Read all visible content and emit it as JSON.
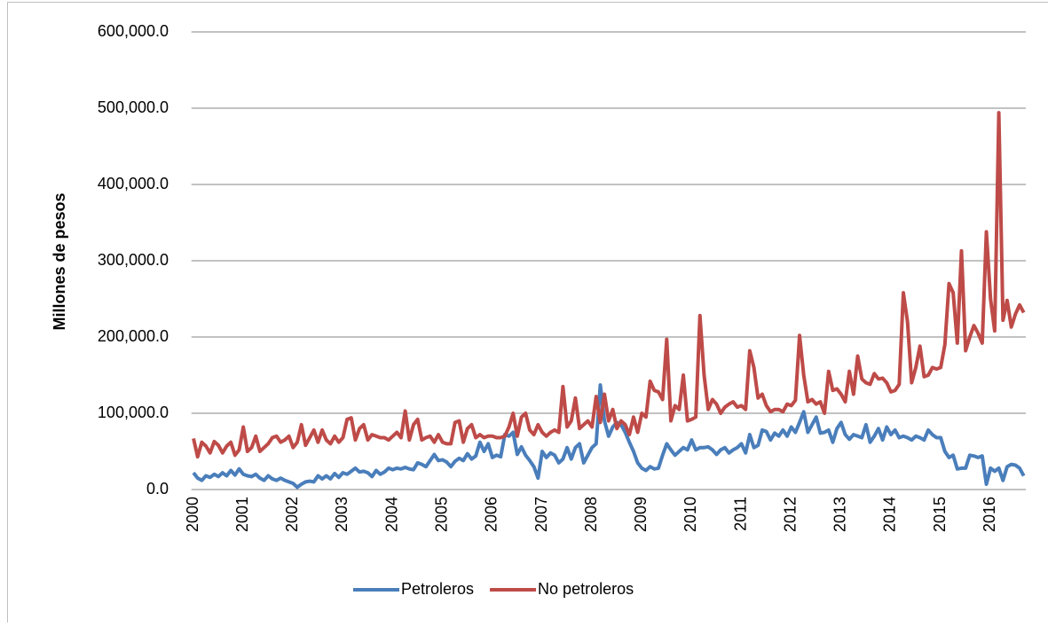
{
  "chart_data": {
    "type": "line",
    "ylabel": "Millones de pesos",
    "categories": [
      "2000",
      null,
      null,
      null,
      null,
      null,
      null,
      null,
      null,
      null,
      null,
      null,
      "2001",
      null,
      null,
      null,
      null,
      null,
      null,
      null,
      null,
      null,
      null,
      null,
      "2002",
      null,
      null,
      null,
      null,
      null,
      null,
      null,
      null,
      null,
      null,
      null,
      "2003",
      null,
      null,
      null,
      null,
      null,
      null,
      null,
      null,
      null,
      null,
      null,
      "2004",
      null,
      null,
      null,
      null,
      null,
      null,
      null,
      null,
      null,
      null,
      null,
      "2005",
      null,
      null,
      null,
      null,
      null,
      null,
      null,
      null,
      null,
      null,
      null,
      "2006",
      null,
      null,
      null,
      null,
      null,
      null,
      null,
      null,
      null,
      null,
      null,
      "2007",
      null,
      null,
      null,
      null,
      null,
      null,
      null,
      null,
      null,
      null,
      null,
      "2008",
      null,
      null,
      null,
      null,
      null,
      null,
      null,
      null,
      null,
      null,
      null,
      "2009",
      null,
      null,
      null,
      null,
      null,
      null,
      null,
      null,
      null,
      null,
      null,
      "2010",
      null,
      null,
      null,
      null,
      null,
      null,
      null,
      null,
      null,
      null,
      null,
      "2011",
      null,
      null,
      null,
      null,
      null,
      null,
      null,
      null,
      null,
      null,
      null,
      "2012",
      null,
      null,
      null,
      null,
      null,
      null,
      null,
      null,
      null,
      null,
      null,
      "2013",
      null,
      null,
      null,
      null,
      null,
      null,
      null,
      null,
      null,
      null,
      null,
      "2014",
      null,
      null,
      null,
      null,
      null,
      null,
      null,
      null,
      null,
      null,
      null,
      "2015",
      null,
      null,
      null,
      null,
      null,
      null,
      null,
      null,
      null,
      null,
      null,
      "2016",
      null,
      null,
      null,
      null,
      null,
      null,
      null,
      null
    ],
    "series": [
      {
        "name": "Petroleros",
        "color": "#4a7ebb",
        "values": [
          22000,
          15000,
          12000,
          18000,
          16000,
          20000,
          17000,
          22000,
          18000,
          25000,
          19000,
          27000,
          20000,
          18000,
          17000,
          20000,
          15000,
          12000,
          18000,
          14000,
          12000,
          15000,
          12000,
          10000,
          8000,
          3000,
          7000,
          10000,
          11000,
          10000,
          18000,
          14000,
          18000,
          14000,
          21000,
          16000,
          22000,
          20000,
          24000,
          28000,
          23000,
          24000,
          22000,
          17000,
          25000,
          20000,
          23000,
          28000,
          26000,
          28000,
          27000,
          29000,
          27000,
          26000,
          35000,
          33000,
          30000,
          38000,
          46000,
          38000,
          39000,
          36000,
          30000,
          37000,
          41000,
          38000,
          47000,
          40000,
          44000,
          62000,
          50000,
          60000,
          42000,
          45000,
          43000,
          72000,
          70000,
          75000,
          46000,
          56000,
          45000,
          38000,
          30000,
          15000,
          50000,
          42000,
          48000,
          45000,
          35000,
          40000,
          55000,
          40000,
          55000,
          60000,
          35000,
          45000,
          55000,
          60000,
          137000,
          90000,
          70000,
          82000,
          88000,
          85000,
          75000,
          62000,
          50000,
          35000,
          28000,
          25000,
          30000,
          27000,
          28000,
          45000,
          60000,
          52000,
          45000,
          50000,
          55000,
          52000,
          65000,
          52000,
          55000,
          55000,
          56000,
          52000,
          46000,
          52000,
          55000,
          48000,
          52000,
          55000,
          60000,
          48000,
          72000,
          55000,
          58000,
          78000,
          76000,
          65000,
          74000,
          70000,
          78000,
          70000,
          82000,
          75000,
          88000,
          102000,
          75000,
          85000,
          95000,
          74000,
          75000,
          78000,
          62000,
          80000,
          88000,
          72000,
          66000,
          72000,
          70000,
          68000,
          85000,
          62000,
          70000,
          80000,
          65000,
          82000,
          72000,
          78000,
          68000,
          70000,
          68000,
          65000,
          70000,
          68000,
          65000,
          78000,
          72000,
          68000,
          68000,
          50000,
          42000,
          45000,
          27000,
          28000,
          28000,
          45000,
          44000,
          42000,
          44000,
          7000,
          28000,
          24000,
          28000,
          12000,
          30000,
          33000,
          32000,
          28000,
          18000
        ]
      },
      {
        "name": "No petroleros",
        "color": "#be4b48",
        "values": [
          67000,
          43000,
          62000,
          57000,
          48000,
          63000,
          58000,
          48000,
          57000,
          62000,
          45000,
          52000,
          82000,
          50000,
          55000,
          70000,
          50000,
          55000,
          60000,
          68000,
          70000,
          62000,
          65000,
          70000,
          55000,
          62000,
          85000,
          58000,
          68000,
          78000,
          62000,
          78000,
          65000,
          60000,
          70000,
          62000,
          68000,
          92000,
          94000,
          65000,
          80000,
          85000,
          65000,
          72000,
          70000,
          68000,
          68000,
          65000,
          70000,
          75000,
          68000,
          103000,
          65000,
          85000,
          92000,
          65000,
          68000,
          70000,
          62000,
          72000,
          62000,
          60000,
          60000,
          88000,
          90000,
          62000,
          80000,
          85000,
          68000,
          72000,
          68000,
          70000,
          70000,
          68000,
          68000,
          70000,
          82000,
          100000,
          70000,
          95000,
          100000,
          78000,
          72000,
          85000,
          75000,
          70000,
          75000,
          78000,
          75000,
          135000,
          82000,
          90000,
          120000,
          80000,
          85000,
          90000,
          82000,
          122000,
          88000,
          125000,
          90000,
          105000,
          80000,
          90000,
          85000,
          72000,
          95000,
          75000,
          100000,
          95000,
          142000,
          130000,
          128000,
          118000,
          197000,
          90000,
          110000,
          105000,
          150000,
          90000,
          92000,
          95000,
          228000,
          150000,
          105000,
          118000,
          112000,
          100000,
          108000,
          112000,
          115000,
          108000,
          110000,
          105000,
          182000,
          160000,
          120000,
          125000,
          110000,
          102000,
          105000,
          105000,
          102000,
          112000,
          110000,
          117000,
          202000,
          150000,
          115000,
          118000,
          112000,
          115000,
          100000,
          155000,
          130000,
          132000,
          125000,
          115000,
          155000,
          125000,
          175000,
          145000,
          140000,
          138000,
          152000,
          145000,
          146000,
          140000,
          128000,
          130000,
          138000,
          258000,
          220000,
          140000,
          160000,
          188000,
          148000,
          150000,
          160000,
          158000,
          160000,
          190000,
          270000,
          258000,
          192000,
          313000,
          182000,
          200000,
          215000,
          205000,
          192000,
          338000,
          250000,
          208000,
          494000,
          222000,
          248000,
          213000,
          230000,
          242000,
          232000
        ]
      }
    ],
    "ylim": [
      0,
      600000
    ],
    "yticks": [
      {
        "value": 0,
        "label": "0.0"
      },
      {
        "value": 100000,
        "label": "100,000.0"
      },
      {
        "value": 200000,
        "label": "200,000.0"
      },
      {
        "value": 300000,
        "label": "300,000.0"
      },
      {
        "value": 400000,
        "label": "400,000.0"
      },
      {
        "value": 500000,
        "label": "500,000.0"
      },
      {
        "value": 600000,
        "label": "600,000.0"
      }
    ],
    "grid": true,
    "legend": "bottom"
  }
}
